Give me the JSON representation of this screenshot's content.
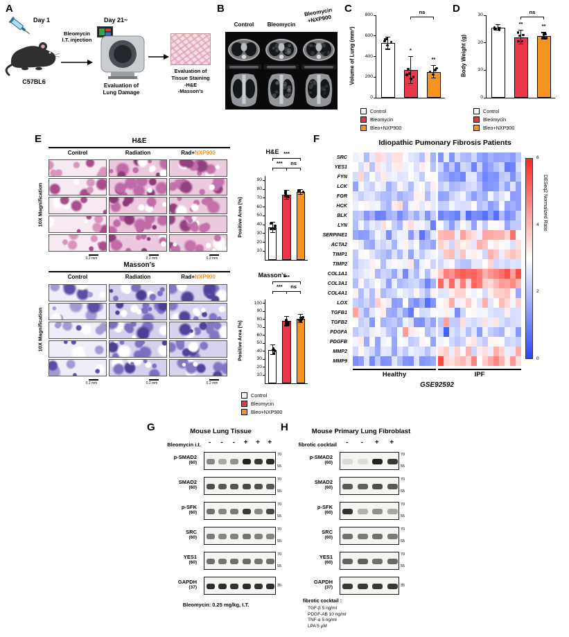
{
  "legend": {
    "items": [
      {
        "label": "Control",
        "color": "#ffffff"
      },
      {
        "label": "Bleomycin",
        "color": "#e8374a"
      },
      {
        "label": "Bleo+NXP900",
        "color": "#f59420"
      }
    ]
  },
  "panels": {
    "A": {
      "label": "A",
      "day1": "Day 1",
      "injection_label": "Bleomycin\nI.T. injection",
      "mouse_label": "C57BL6",
      "day21": "Day 21~",
      "ct_label": "Evaluation of\nLung Damage",
      "tissue_label": "Evaluation of\nTissue Staining\n-H&E\n-Masson's"
    },
    "B": {
      "label": "B",
      "columns": [
        {
          "text": "Control"
        },
        {
          "text": "Bleomycin"
        },
        {
          "text": "Bleomycin\n+NXP900"
        }
      ],
      "fibrosis_levels": [
        0,
        0.55,
        0.3
      ]
    },
    "C": {
      "label": "C"
    },
    "D": {
      "label": "D"
    },
    "E": {
      "label": "E",
      "sections": [
        {
          "id": "he",
          "title": "H&E",
          "columns": [
            {
              "prefix": "Control",
              "highlight": ""
            },
            {
              "prefix": "Radiation",
              "highlight": ""
            },
            {
              "prefix": "Rad+",
              "highlight": "NXP900"
            }
          ],
          "row_label": "10X Magnification",
          "scale_label": "0.2 mm",
          "n_strips": 5,
          "style": {
            "base": [
              "#f7e9f1",
              "#edc9e0",
              "#eccade"
            ],
            "spot": [
              "#d795bd",
              "#c06aa8",
              "#c470ab"
            ],
            "dark": [
              "#a84c8c",
              "#8e3a78",
              "#93407e"
            ],
            "density": [
              7,
              12,
              11
            ]
          }
        },
        {
          "id": "masson",
          "title": "Masson's",
          "columns": [
            {
              "prefix": "Control",
              "highlight": ""
            },
            {
              "prefix": "Radiation",
              "highlight": ""
            },
            {
              "prefix": "Rad+",
              "highlight": "NXP900"
            }
          ],
          "row_label": "10X Magnification",
          "scale_label": "0.2 mm",
          "n_strips": 5,
          "style": {
            "base": [
              "#efeef8",
              "#d5d0ec",
              "#d8d2ee"
            ],
            "spot": [
              "#a39ad4",
              "#7b6fc0",
              "#8177c4"
            ],
            "dark": [
              "#5a4fa5",
              "#4a3f95",
              "#4f4499"
            ],
            "density": [
              7,
              12,
              11
            ]
          }
        }
      ]
    },
    "F": {
      "label": "F"
    },
    "G": {
      "label": "G",
      "title": "Mouse Lung Tissue",
      "condition_label": "Bleomycin i.t.",
      "lanes": [
        "-",
        "-",
        "-",
        "+",
        "+",
        "+"
      ],
      "blots": [
        {
          "name": "p-SMAD2",
          "mw": "(60)",
          "markers": [
            "70",
            "55"
          ],
          "bands": [
            0.5,
            0.35,
            0.45,
            0.95,
            0.85,
            0.92
          ]
        },
        {
          "name": "SMAD2",
          "mw": "(60)",
          "markers": [
            "70",
            "55"
          ],
          "bands": [
            0.75,
            0.7,
            0.72,
            0.78,
            0.74,
            0.7
          ]
        },
        {
          "name": "p-SFK",
          "mw": "(60)",
          "markers": [
            "70",
            "55"
          ],
          "bands": [
            0.6,
            0.5,
            0.55,
            0.85,
            0.5,
            0.78
          ]
        },
        {
          "name": "SRC",
          "mw": "(60)",
          "markers": [
            "70",
            "55"
          ],
          "bands": [
            0.55,
            0.5,
            0.52,
            0.58,
            0.52,
            0.5
          ]
        },
        {
          "name": "YES1",
          "mw": "(60)",
          "markers": [
            "70",
            "55"
          ],
          "bands": [
            0.62,
            0.58,
            0.6,
            0.62,
            0.58,
            0.6
          ]
        },
        {
          "name": "GAPDH",
          "mw": "(37)",
          "markers": [
            "35"
          ],
          "bands": [
            0.9,
            0.9,
            0.88,
            0.9,
            0.88,
            0.9
          ]
        }
      ],
      "footnote": "Bleomycin: 0.25 mg/kg, I.T."
    },
    "H": {
      "label": "H",
      "title": "Mouse Primary Lung Fibroblast",
      "condition_label": "fibrotic cocktail",
      "lanes": [
        "-",
        "-",
        "+",
        "+"
      ],
      "blots": [
        {
          "name": "p-SMAD2",
          "mw": "(60)",
          "markers": [
            "70",
            "55"
          ],
          "bands": [
            0.12,
            0.1,
            0.95,
            0.85
          ]
        },
        {
          "name": "SMAD2",
          "mw": "(60)",
          "markers": [
            "70",
            "55"
          ],
          "bands": [
            0.7,
            0.68,
            0.75,
            0.7
          ]
        },
        {
          "name": "p-SFK",
          "mw": "(60)",
          "markers": [
            "70",
            "55"
          ],
          "bands": [
            0.88,
            0.3,
            0.45,
            0.35
          ]
        },
        {
          "name": "SRC",
          "mw": "(60)",
          "markers": [
            "70",
            "55"
          ],
          "bands": [
            0.6,
            0.55,
            0.6,
            0.55
          ]
        },
        {
          "name": "YES1",
          "mw": "(60)",
          "markers": [
            "70",
            "55"
          ],
          "bands": [
            0.65,
            0.68,
            0.6,
            0.63
          ]
        },
        {
          "name": "GAPDH",
          "mw": "(37)",
          "markers": [
            "35"
          ],
          "bands": [
            0.85,
            0.85,
            0.85,
            0.85
          ]
        }
      ],
      "footnote_title": "fibrotic cocktail :",
      "footnote_lines": [
        "TGF-β 5 ng/ml",
        "PDGF-AB 10 ng/ml",
        "TNF-α 5 ng/ml",
        "LPA 5 μM"
      ]
    }
  },
  "chart_data": [
    {
      "id": "lung-volume",
      "type": "bar",
      "ylabel": "Volume of Lung (mm³)",
      "ylim": [
        0,
        800
      ],
      "yticks": [
        0,
        200,
        400,
        600,
        800
      ],
      "categories": [
        "Control",
        "Bleomycin",
        "Bleo+NXP900"
      ],
      "values": [
        530,
        270,
        250
      ],
      "errors": [
        60,
        130,
        60
      ],
      "bar_colors": [
        "#ffffff",
        "#e8374a",
        "#f59420"
      ],
      "sig_labels": [
        "",
        "*",
        "**"
      ],
      "brackets": [
        {
          "from": 1,
          "to": 2,
          "label": "ns",
          "y": 2
        }
      ],
      "n_points": [
        6,
        6,
        5
      ]
    },
    {
      "id": "body-weight",
      "type": "bar",
      "ylabel": "Body Weight (g)",
      "ylim": [
        0,
        30
      ],
      "yticks": [
        0,
        10,
        20,
        30
      ],
      "categories": [
        "Control",
        "Bleomycin",
        "Bleo+NXP900"
      ],
      "values": [
        25.5,
        22,
        22.5
      ],
      "errors": [
        1,
        2.5,
        1.2
      ],
      "bar_colors": [
        "#ffffff",
        "#e8374a",
        "#f59420"
      ],
      "sig_labels": [
        "",
        "**",
        "**"
      ],
      "brackets": [
        {
          "from": 1,
          "to": 2,
          "label": "ns",
          "y": 2
        }
      ],
      "n_points": [
        6,
        5,
        5
      ]
    },
    {
      "id": "he-positive-area",
      "type": "bar",
      "title": "H&E",
      "ylabel": "Positive Area (%)",
      "ylim": [
        0,
        95
      ],
      "yticks": [
        10,
        20,
        30,
        40,
        50,
        60,
        70,
        80,
        90
      ],
      "categories": [
        "Control",
        "Bleomycin",
        "Bleo+NXP900"
      ],
      "values": [
        37,
        74,
        77
      ],
      "errors": [
        6,
        5,
        3
      ],
      "bar_colors": [
        "#ffffff",
        "#e8374a",
        "#f59420"
      ],
      "sig_labels": [
        "",
        "",
        ""
      ],
      "brackets": [
        {
          "from": 0,
          "to": 2,
          "label": "***",
          "y": -26
        },
        {
          "from": 0,
          "to": 1,
          "label": "***",
          "y": -12
        },
        {
          "from": 1,
          "to": 2,
          "label": "ns",
          "y": -12
        }
      ],
      "n_points": [
        5,
        5,
        5
      ]
    },
    {
      "id": "masson-positive-area",
      "type": "bar",
      "title": "Masson's",
      "ylabel": "Positive Area (%)",
      "ylim": [
        0,
        105
      ],
      "yticks": [
        10,
        20,
        30,
        40,
        50,
        60,
        70,
        80,
        90,
        100
      ],
      "categories": [
        "Control",
        "Bleomycin",
        "Bleo+NXP900"
      ],
      "values": [
        42,
        78,
        81
      ],
      "errors": [
        6,
        6,
        5
      ],
      "bar_colors": [
        "#ffffff",
        "#e8374a",
        "#f59420"
      ],
      "sig_labels": [
        "",
        "",
        ""
      ],
      "brackets": [
        {
          "from": 0,
          "to": 2,
          "label": "***",
          "y": -26
        },
        {
          "from": 0,
          "to": 1,
          "label": "***",
          "y": -12
        },
        {
          "from": 1,
          "to": 2,
          "label": "ns",
          "y": -12
        }
      ],
      "n_points": [
        5,
        5,
        5
      ]
    },
    {
      "id": "ipf-heatmap",
      "type": "heatmap",
      "title": "Idiopathic Pumonary Fibrosis Patients",
      "genes": [
        "SRC",
        "YES1",
        "FYN",
        "LCK",
        "FGR",
        "HCK",
        "BLK",
        "LYN",
        "SERPINE1",
        "ACTA2",
        "TIMP1",
        "TIMP2",
        "COL1A1",
        "COL3A1",
        "COL4A1",
        "LOX",
        "TGFB1",
        "TGFB2",
        "PDGFA",
        "PDGFB",
        "MMP2",
        "MMP9"
      ],
      "groups": [
        {
          "label": "Healthy",
          "n": 15
        },
        {
          "label": "IPF",
          "n": 15
        }
      ],
      "group_means": {
        "healthy": [
          2.6,
          2.7,
          2.8,
          2.4,
          2.5,
          2.6,
          1.8,
          2.6,
          2.0,
          2.3,
          2.3,
          2.6,
          2.3,
          2.3,
          2.4,
          2.1,
          2.4,
          2.1,
          2.4,
          2.4,
          2.4,
          1.9
        ],
        "ipf": [
          1.6,
          1.7,
          1.9,
          2.1,
          2.2,
          2.3,
          1.5,
          2.2,
          3.6,
          3.0,
          3.2,
          2.9,
          4.6,
          4.4,
          3.3,
          3.4,
          2.9,
          2.6,
          2.2,
          2.7,
          3.3,
          3.9
        ]
      },
      "noise": 0.9,
      "colorbar": {
        "label": "DESeq2 Normalized Ratio",
        "min": 0,
        "max": 6,
        "ticks": [
          0,
          2,
          4,
          6
        ]
      },
      "dataset_label": "GSE92592"
    }
  ]
}
